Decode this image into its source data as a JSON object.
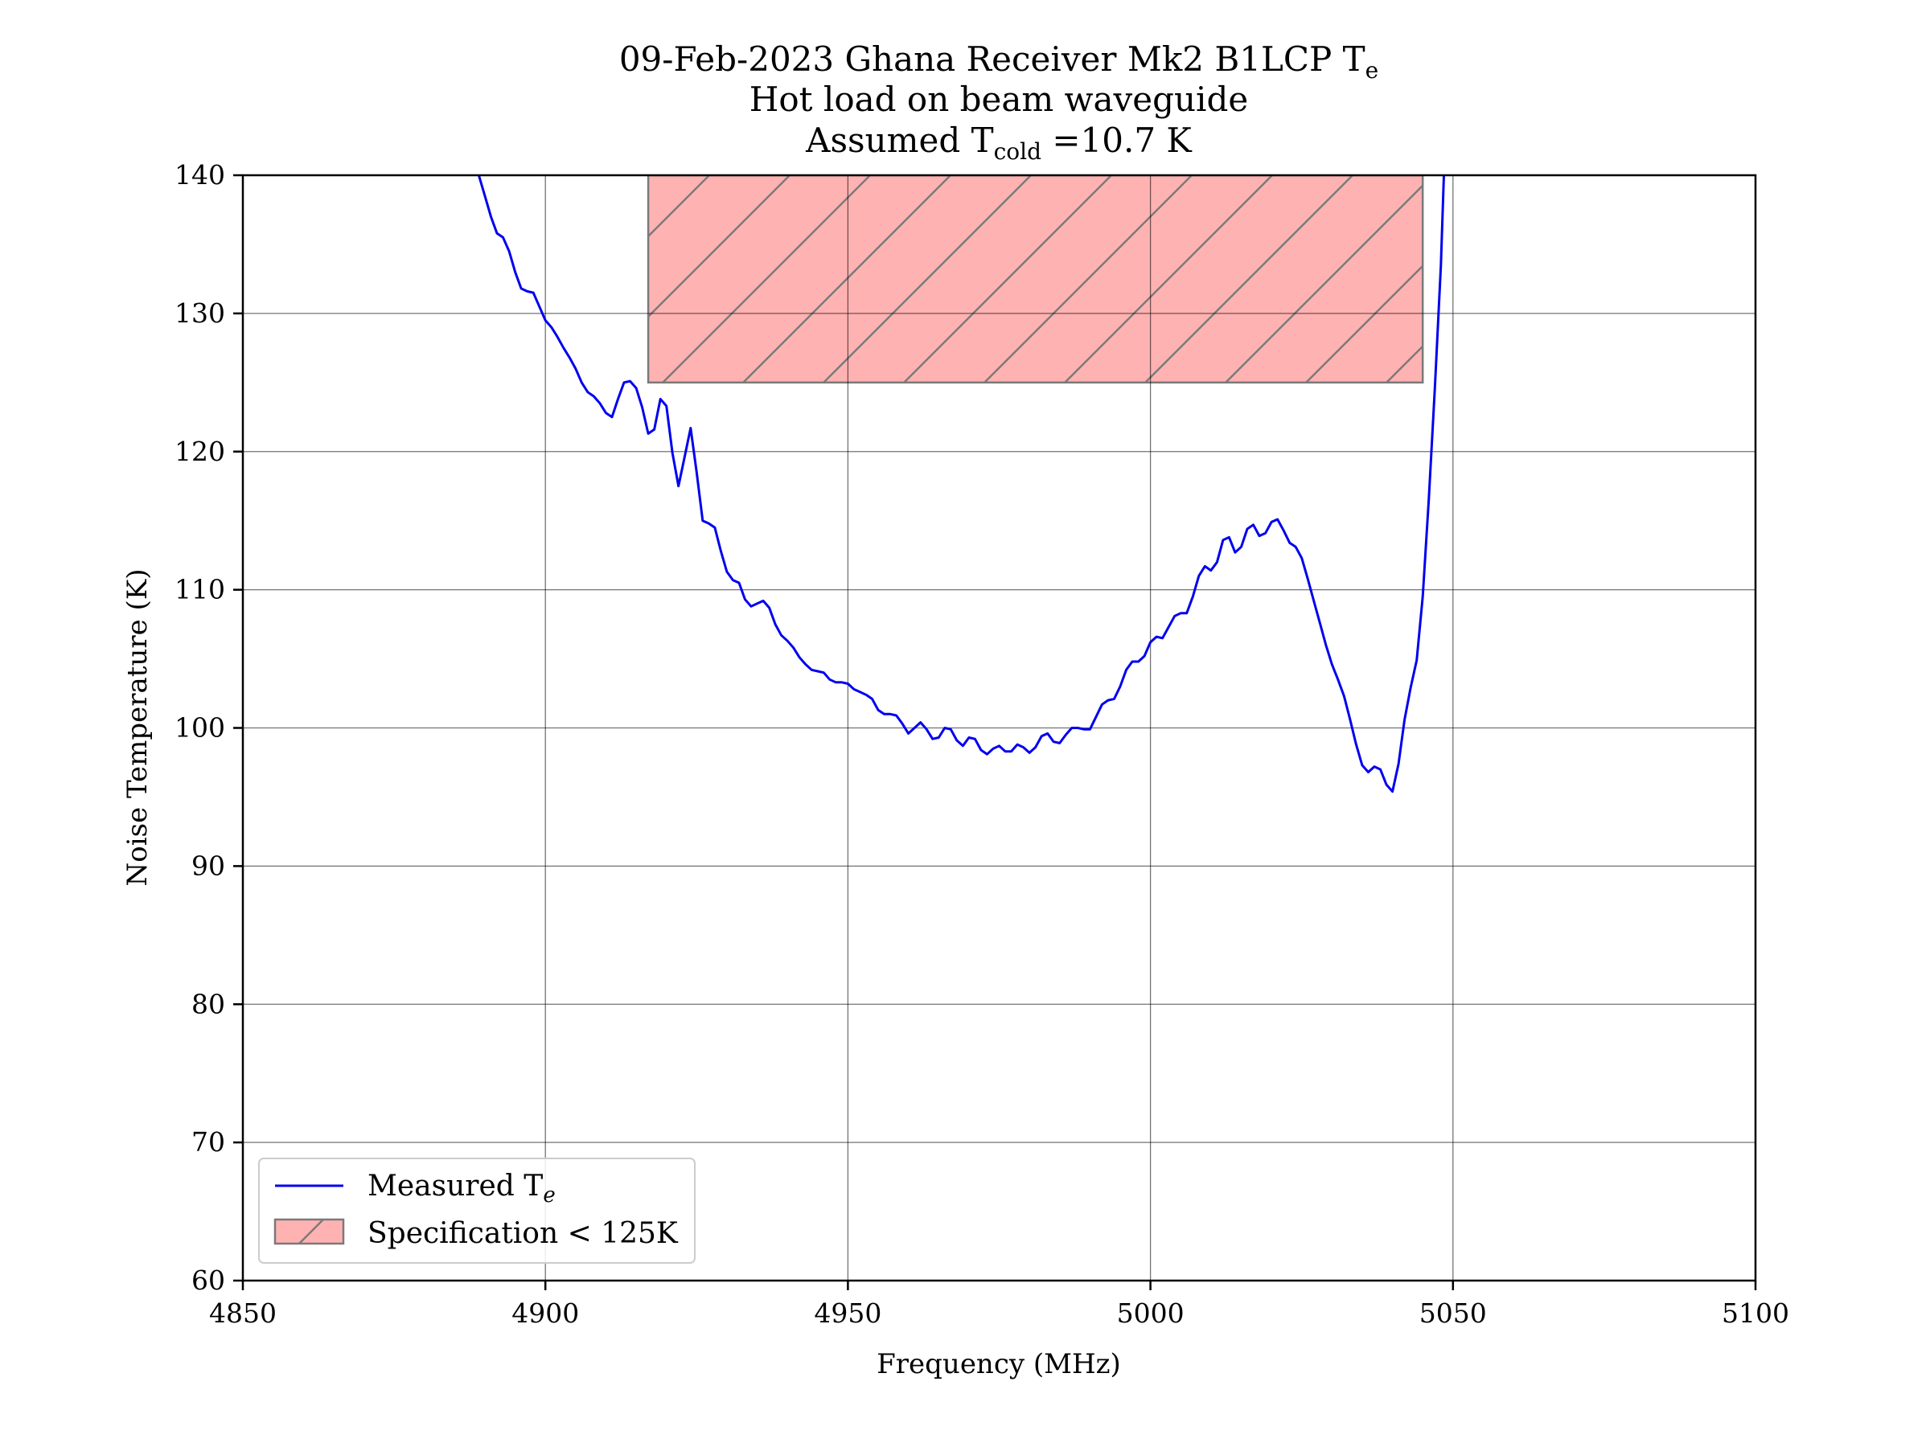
{
  "chart_data": {
    "type": "line",
    "title_lines": [
      "09-Feb-2023 Ghana Receiver Mk2 B1LCP T",
      "Hot load on beam waveguide",
      "Assumed T"
    ],
    "title_sub_e": "e",
    "title_sub_cold": "cold",
    "title_line3_suffix": " =10.7 K",
    "xlabel": "Frequency (MHz)",
    "ylabel": "Noise Temperature (K)",
    "xlim": [
      4850,
      5100
    ],
    "ylim": [
      60,
      140
    ],
    "xticks": [
      4850,
      4900,
      4950,
      5000,
      5050,
      5100
    ],
    "yticks": [
      60,
      70,
      80,
      90,
      100,
      110,
      120,
      130,
      140
    ],
    "grid": true,
    "legend_position": "lower-left",
    "series": [
      {
        "name": "Measured T",
        "name_sub": "e",
        "color": "#0000ee",
        "x": [
          4889,
          4890,
          4891,
          4892,
          4893,
          4894,
          4895,
          4896,
          4897,
          4898,
          4899,
          4900,
          4901,
          4902,
          4903,
          4904,
          4905,
          4906,
          4907,
          4908,
          4909,
          4910,
          4911,
          4912,
          4913,
          4914,
          4915,
          4916,
          4917,
          4918,
          4919,
          4920,
          4921,
          4922,
          4923,
          4924,
          4925,
          4926,
          4927,
          4928,
          4929,
          4930,
          4931,
          4932,
          4933,
          4934,
          4935,
          4936,
          4937,
          4938,
          4939,
          4940,
          4941,
          4942,
          4943,
          4944,
          4945,
          4946,
          4947,
          4948,
          4949,
          4950,
          4951,
          4952,
          4953,
          4954,
          4955,
          4956,
          4957,
          4958,
          4959,
          4960,
          4961,
          4962,
          4963,
          4964,
          4965,
          4966,
          4967,
          4968,
          4969,
          4970,
          4971,
          4972,
          4973,
          4974,
          4975,
          4976,
          4977,
          4978,
          4979,
          4980,
          4981,
          4982,
          4983,
          4984,
          4985,
          4986,
          4987,
          4988,
          4989,
          4990,
          4991,
          4992,
          4993,
          4994,
          4995,
          4996,
          4997,
          4998,
          4999,
          5000,
          5001,
          5002,
          5003,
          5004,
          5005,
          5006,
          5007,
          5008,
          5009,
          5010,
          5011,
          5012,
          5013,
          5014,
          5015,
          5016,
          5017,
          5018,
          5019,
          5020,
          5021,
          5022,
          5023,
          5024,
          5025,
          5026,
          5027,
          5028,
          5029,
          5030,
          5031,
          5032,
          5033,
          5034,
          5035,
          5036,
          5037,
          5038,
          5039,
          5040,
          5041,
          5042,
          5043,
          5044,
          5045,
          5046,
          5047,
          5048,
          5048.5
        ],
        "y": [
          140.0,
          138.5,
          137.0,
          135.8,
          135.5,
          134.5,
          133.0,
          131.8,
          131.6,
          131.5,
          130.5,
          129.5,
          129.0,
          128.3,
          127.5,
          126.8,
          126.0,
          125.0,
          124.3,
          124.0,
          123.5,
          122.8,
          122.5,
          123.8,
          125.0,
          125.1,
          124.6,
          123.2,
          121.3,
          121.6,
          123.8,
          123.3,
          119.9,
          117.5,
          119.6,
          121.7,
          118.5,
          115.0,
          114.8,
          114.5,
          112.8,
          111.3,
          110.7,
          110.5,
          109.3,
          108.8,
          109.0,
          109.2,
          108.7,
          107.5,
          106.7,
          106.3,
          105.8,
          105.1,
          104.6,
          104.2,
          104.1,
          104.0,
          103.5,
          103.3,
          103.3,
          103.2,
          102.8,
          102.6,
          102.4,
          102.1,
          101.3,
          101.0,
          101.0,
          100.9,
          100.3,
          99.6,
          100.0,
          100.4,
          99.9,
          99.2,
          99.3,
          100.0,
          99.9,
          99.1,
          98.7,
          99.3,
          99.2,
          98.4,
          98.1,
          98.5,
          98.7,
          98.3,
          98.3,
          98.8,
          98.6,
          98.2,
          98.6,
          99.4,
          99.6,
          99.0,
          98.9,
          99.5,
          100.0,
          100.0,
          99.9,
          99.9,
          100.8,
          101.7,
          102.0,
          102.1,
          103.0,
          104.2,
          104.8,
          104.8,
          105.2,
          106.2,
          106.6,
          106.5,
          107.3,
          108.1,
          108.3,
          108.3,
          109.5,
          111.0,
          111.7,
          111.4,
          112.0,
          113.6,
          113.8,
          112.7,
          113.1,
          114.4,
          114.7,
          113.9,
          114.1,
          114.9,
          115.1,
          114.3,
          113.4,
          113.1,
          112.3,
          110.8,
          109.2,
          107.6,
          106.0,
          104.6,
          103.5,
          102.3,
          100.6,
          98.8,
          97.3,
          96.8,
          97.2,
          97.0,
          95.9,
          95.4,
          97.4,
          100.6,
          102.9,
          104.9,
          109.5,
          116.5,
          124.5,
          133.5,
          140.0
        ]
      }
    ],
    "regions": [
      {
        "name": "Specification < 125K",
        "x_range": [
          4917,
          5045
        ],
        "y_range": [
          125,
          140
        ],
        "color": "#ff7f7f",
        "hatch": "forward-diagonal"
      }
    ]
  }
}
